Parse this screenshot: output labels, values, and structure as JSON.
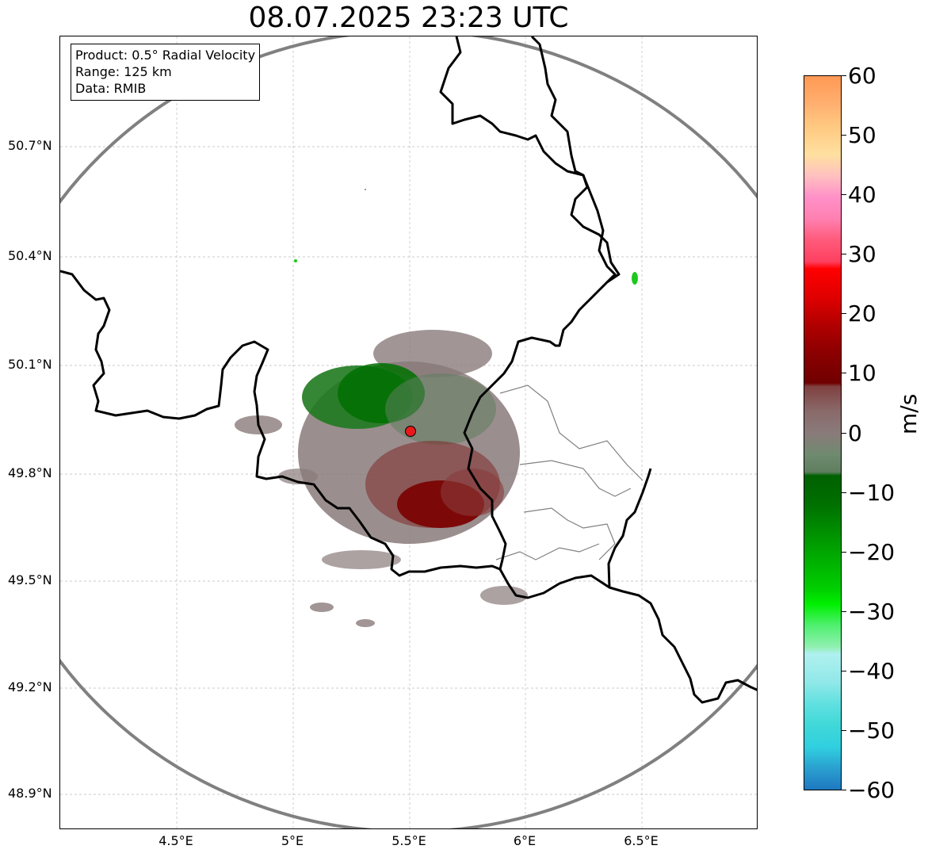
{
  "title": "08.07.2025 23:23 UTC",
  "info": {
    "product": "Product: 0.5° Radial Velocity",
    "range": "Range: 125 km",
    "source": "Data: RMIB"
  },
  "axes": {
    "y_ticks": [
      "50.7°N",
      "50.4°N",
      "50.1°N",
      "49.8°N",
      "49.5°N",
      "49.2°N",
      "48.9°N"
    ],
    "x_ticks": [
      "4.5°E",
      "5°E",
      "5.5°E",
      "6°E",
      "6.5°E"
    ]
  },
  "colorbar": {
    "ticks": [
      "60",
      "50",
      "40",
      "30",
      "20",
      "10",
      "0",
      "−10",
      "−20",
      "−30",
      "−40",
      "−50",
      "−60"
    ],
    "unit": "m/s",
    "range": [
      -60,
      60
    ]
  },
  "radar_site": {
    "lon": 5.5,
    "lat": 49.91,
    "color": "#e8191a"
  },
  "range_ring_color": "#808080",
  "colors": {
    "approaching": "#007000",
    "receding": "#7a0000",
    "near_zero": "#8a7a7a"
  }
}
